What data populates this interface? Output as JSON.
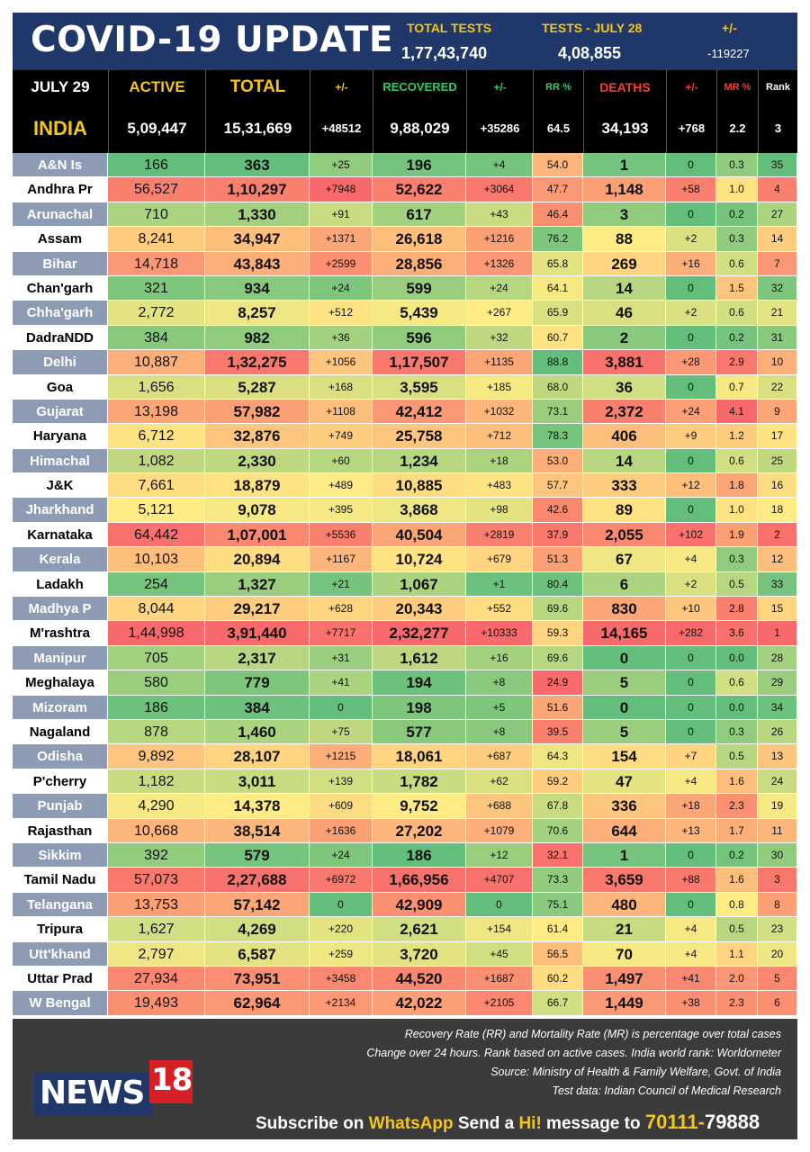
{
  "header": {
    "title": "COVID-19 UPDATE",
    "total_tests_label": "TOTAL TESTS",
    "total_tests_value": "1,77,43,740",
    "tests_day_label": "TESTS - JULY  28",
    "tests_day_value": "4,08,855",
    "change_label": "+/-",
    "change_value": "-119227"
  },
  "columns": {
    "date": "JULY 29",
    "active": "ACTIVE",
    "total": "TOTAL",
    "total_change": "+/-",
    "recovered": "RECOVERED",
    "recovered_change": "+/-",
    "rr": "RR %",
    "deaths": "DEATHS",
    "deaths_change": "+/-",
    "mr": "MR %",
    "rank": "Rank"
  },
  "india": {
    "name": "INDIA",
    "active": "5,09,447",
    "total": "15,31,669",
    "total_change": "+48512",
    "recovered": "9,88,029",
    "recovered_change": "+35286",
    "rr": "64.5",
    "deaths": "34,193",
    "deaths_change": "+768",
    "mr": "2.2",
    "rank": "3"
  },
  "states": [
    [
      "A&N Is",
      "166",
      "363",
      "+25",
      "196",
      "+4",
      "54.0",
      "1",
      "0",
      "0.3",
      "35"
    ],
    [
      "Andhra Pr",
      "56,527",
      "1,10,297",
      "+7948",
      "52,622",
      "+3064",
      "47.7",
      "1,148",
      "+58",
      "1.0",
      "4"
    ],
    [
      "Arunachal",
      "710",
      "1,330",
      "+91",
      "617",
      "+43",
      "46.4",
      "3",
      "0",
      "0.2",
      "27"
    ],
    [
      "Assam",
      "8,241",
      "34,947",
      "+1371",
      "26,618",
      "+1216",
      "76.2",
      "88",
      "+2",
      "0.3",
      "14"
    ],
    [
      "Bihar",
      "14,718",
      "43,843",
      "+2599",
      "28,856",
      "+1326",
      "65.8",
      "269",
      "+16",
      "0.6",
      "7"
    ],
    [
      "Chan'garh",
      "321",
      "934",
      "+24",
      "599",
      "+24",
      "64.1",
      "14",
      "0",
      "1.5",
      "32"
    ],
    [
      "Chha'garh",
      "2,772",
      "8,257",
      "+512",
      "5,439",
      "+267",
      "65.9",
      "46",
      "+2",
      "0.6",
      "21"
    ],
    [
      "DadraNDD",
      "384",
      "982",
      "+36",
      "596",
      "+32",
      "60.7",
      "2",
      "0",
      "0.2",
      "31"
    ],
    [
      "Delhi",
      "10,887",
      "1,32,275",
      "+1056",
      "1,17,507",
      "+1135",
      "88.8",
      "3,881",
      "+28",
      "2.9",
      "10"
    ],
    [
      "Goa",
      "1,656",
      "5,287",
      "+168",
      "3,595",
      "+185",
      "68.0",
      "36",
      "0",
      "0.7",
      "22"
    ],
    [
      "Gujarat",
      "13,198",
      "57,982",
      "+1108",
      "42,412",
      "+1032",
      "73.1",
      "2,372",
      "+24",
      "4.1",
      "9"
    ],
    [
      "Haryana",
      "6,712",
      "32,876",
      "+749",
      "25,758",
      "+712",
      "78.3",
      "406",
      "+9",
      "1.2",
      "17"
    ],
    [
      "Himachal",
      "1,082",
      "2,330",
      "+60",
      "1,234",
      "+18",
      "53.0",
      "14",
      "0",
      "0.6",
      "25"
    ],
    [
      "J&K",
      "7,661",
      "18,879",
      "+489",
      "10,885",
      "+483",
      "57.7",
      "333",
      "+12",
      "1.8",
      "16"
    ],
    [
      "Jharkhand",
      "5,121",
      "9,078",
      "+395",
      "3,868",
      "+98",
      "42.6",
      "89",
      "0",
      "1.0",
      "18"
    ],
    [
      "Karnataka",
      "64,442",
      "1,07,001",
      "+5536",
      "40,504",
      "+2819",
      "37.9",
      "2,055",
      "+102",
      "1.9",
      "2"
    ],
    [
      "Kerala",
      "10,103",
      "20,894",
      "+1167",
      "10,724",
      "+679",
      "51.3",
      "67",
      "+4",
      "0.3",
      "12"
    ],
    [
      "Ladakh",
      "254",
      "1,327",
      "+21",
      "1,067",
      "+1",
      "80.4",
      "6",
      "+2",
      "0.5",
      "33"
    ],
    [
      "Madhya P",
      "8,044",
      "29,217",
      "+628",
      "20,343",
      "+552",
      "69.6",
      "830",
      "+10",
      "2.8",
      "15"
    ],
    [
      "M'rashtra",
      "1,44,998",
      "3,91,440",
      "+7717",
      "2,32,277",
      "+10333",
      "59.3",
      "14,165",
      "+282",
      "3.6",
      "1"
    ],
    [
      "Manipur",
      "705",
      "2,317",
      "+31",
      "1,612",
      "+16",
      "69.6",
      "0",
      "0",
      "0.0",
      "28"
    ],
    [
      "Meghalaya",
      "580",
      "779",
      "+41",
      "194",
      "+8",
      "24.9",
      "5",
      "0",
      "0.6",
      "29"
    ],
    [
      "Mizoram",
      "186",
      "384",
      "0",
      "198",
      "+5",
      "51.6",
      "0",
      "0",
      "0.0",
      "34"
    ],
    [
      "Nagaland",
      "878",
      "1,460",
      "+75",
      "577",
      "+8",
      "39.5",
      "5",
      "0",
      "0.3",
      "26"
    ],
    [
      "Odisha",
      "9,892",
      "28,107",
      "+1215",
      "18,061",
      "+687",
      "64.3",
      "154",
      "+7",
      "0.5",
      "13"
    ],
    [
      "P'cherry",
      "1,182",
      "3,011",
      "+139",
      "1,782",
      "+62",
      "59.2",
      "47",
      "+4",
      "1.6",
      "24"
    ],
    [
      "Punjab",
      "4,290",
      "14,378",
      "+609",
      "9,752",
      "+688",
      "67.8",
      "336",
      "+18",
      "2.3",
      "19"
    ],
    [
      "Rajasthan",
      "10,668",
      "38,514",
      "+1636",
      "27,202",
      "+1079",
      "70.6",
      "644",
      "+13",
      "1.7",
      "11"
    ],
    [
      "Sikkim",
      "392",
      "579",
      "+24",
      "186",
      "+12",
      "32.1",
      "1",
      "0",
      "0.2",
      "30"
    ],
    [
      "Tamil Nadu",
      "57,073",
      "2,27,688",
      "+6972",
      "1,66,956",
      "+4707",
      "73.3",
      "3,659",
      "+88",
      "1.6",
      "3"
    ],
    [
      "Telangana",
      "13,753",
      "57,142",
      "0",
      "42,909",
      "0",
      "75.1",
      "480",
      "0",
      "0.8",
      "8"
    ],
    [
      "Tripura",
      "1,627",
      "4,269",
      "+220",
      "2,621",
      "+154",
      "61.4",
      "21",
      "+4",
      "0.5",
      "23"
    ],
    [
      "Utt'khand",
      "2,797",
      "6,587",
      "+259",
      "3,720",
      "+45",
      "56.5",
      "70",
      "+4",
      "1.1",
      "20"
    ],
    [
      "Uttar Prad",
      "27,934",
      "73,951",
      "+3458",
      "44,520",
      "+1687",
      "60.2",
      "1,497",
      "+41",
      "2.0",
      "5"
    ],
    [
      "W Bengal",
      "19,493",
      "62,964",
      "+2134",
      "42,022",
      "+2105",
      "66.7",
      "1,449",
      "+38",
      "2.3",
      "6"
    ]
  ],
  "state_field_names": [
    "state",
    "active",
    "total",
    "total-change",
    "recovered",
    "recovered-change",
    "rr",
    "deaths",
    "deaths-change",
    "mr",
    "rank"
  ],
  "footer": {
    "note1": "Recovery Rate (RR) and Mortality Rate (MR) is percentage over total cases",
    "note2": "Change over 24 hours. Rank based on active cases. India world rank: Worldometer",
    "note3": "Source: Ministry of Health & Family Welfare, Govt. of India",
    "note4": "Test data: Indian Council of Medical Research",
    "logo_text": "NEWS",
    "logo_number": "18",
    "subscribe_pre": "Subscribe on ",
    "subscribe_app": "WhatsApp",
    "subscribe_mid": " Send a ",
    "subscribe_hi": "Hi!",
    "subscribe_post": " message to ",
    "phone_a": "70111-",
    "phone_b": "79888"
  },
  "colors": {
    "title_bar": "#1f3869",
    "accent_yellow": "#f5c518",
    "green_label": "#2ecc71",
    "red_label": "#ff3b30",
    "orange_label": "#ff8c1a",
    "footer_bg": "#3b3b3b",
    "logo_red": "#d71f26"
  }
}
